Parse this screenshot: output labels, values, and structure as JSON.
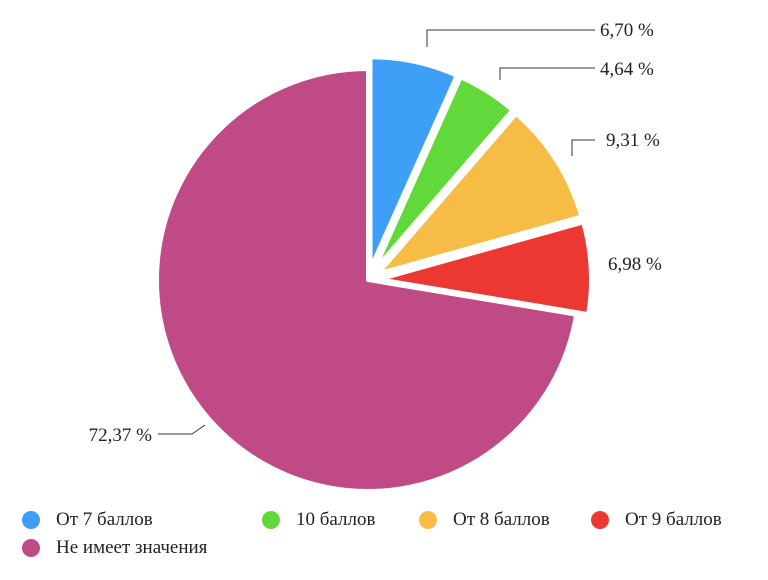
{
  "chart_data": {
    "type": "pie",
    "start_angle_deg": 0,
    "direction": "clockwise",
    "slices": [
      {
        "name": "От 7 баллов",
        "value": 6.7,
        "label": "6,70 %",
        "color": "#3d9ff5",
        "exploded": true
      },
      {
        "name": "10 баллов",
        "value": 4.64,
        "label": "4,64 %",
        "color": "#62d93b",
        "exploded": true
      },
      {
        "name": "От 8 баллов",
        "value": 9.31,
        "label": "9,31 %",
        "color": "#f6bc45",
        "exploded": true
      },
      {
        "name": "От 9 баллов",
        "value": 6.98,
        "label": "6,98 %",
        "color": "#ec3832",
        "exploded": true
      },
      {
        "name": "Не имеет значения",
        "value": 72.37,
        "label": "72,37 %",
        "color": "#c04a85",
        "exploded": false
      }
    ],
    "legend": {
      "placement": "bottom",
      "items": [
        "От 7 баллов",
        "10 баллов",
        "От 8 баллов",
        "От 9 баллов",
        "Не имеет значения"
      ]
    }
  }
}
